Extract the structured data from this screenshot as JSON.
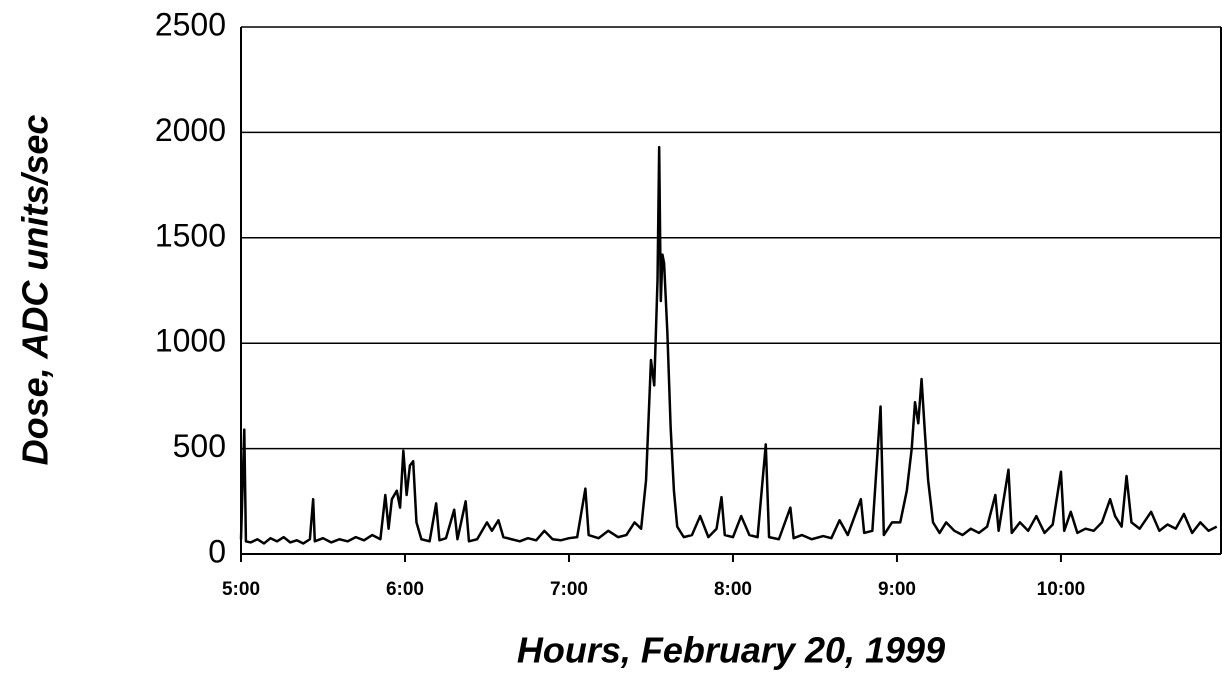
{
  "chart_data": {
    "type": "line",
    "xlabel": "Hours, February 20, 1999",
    "ylabel": "Dose, ADC units/sec",
    "color": "#000000",
    "grid": true,
    "xlim": [
      5,
      10.976
    ],
    "ylim": [
      0,
      2500
    ],
    "yticks": [
      0,
      500,
      1000,
      1500,
      2000,
      2500
    ],
    "xticks": [
      {
        "value": 5,
        "label": "5:00"
      },
      {
        "value": 6,
        "label": "6:00"
      },
      {
        "value": 7,
        "label": "7:00"
      },
      {
        "value": 8,
        "label": "8:00"
      },
      {
        "value": 9,
        "label": "9:00"
      },
      {
        "value": 10,
        "label": "10:00"
      }
    ],
    "x": [
      5.0,
      5.02,
      5.03,
      5.06,
      5.1,
      5.14,
      5.18,
      5.22,
      5.26,
      5.3,
      5.34,
      5.38,
      5.42,
      5.44,
      5.45,
      5.5,
      5.55,
      5.6,
      5.65,
      5.7,
      5.75,
      5.8,
      5.85,
      5.88,
      5.9,
      5.92,
      5.95,
      5.97,
      5.99,
      6.01,
      6.03,
      6.05,
      6.07,
      6.1,
      6.15,
      6.19,
      6.21,
      6.25,
      6.3,
      6.32,
      6.37,
      6.39,
      6.44,
      6.5,
      6.53,
      6.57,
      6.6,
      6.65,
      6.7,
      6.75,
      6.8,
      6.85,
      6.9,
      6.95,
      7.0,
      7.05,
      7.1,
      7.12,
      7.18,
      7.24,
      7.3,
      7.35,
      7.4,
      7.44,
      7.47,
      7.5,
      7.52,
      7.54,
      7.55,
      7.56,
      7.57,
      7.58,
      7.6,
      7.62,
      7.64,
      7.66,
      7.7,
      7.75,
      7.8,
      7.85,
      7.9,
      7.93,
      7.95,
      8.0,
      8.05,
      8.1,
      8.15,
      8.2,
      8.22,
      8.28,
      8.35,
      8.37,
      8.42,
      8.48,
      8.55,
      8.6,
      8.65,
      8.7,
      8.78,
      8.8,
      8.85,
      8.9,
      8.92,
      8.97,
      9.02,
      9.06,
      9.09,
      9.11,
      9.13,
      9.15,
      9.17,
      9.19,
      9.22,
      9.26,
      9.3,
      9.35,
      9.4,
      9.45,
      9.5,
      9.55,
      9.6,
      9.62,
      9.68,
      9.7,
      9.75,
      9.8,
      9.85,
      9.9,
      9.95,
      10.0,
      10.02,
      10.06,
      10.1,
      10.15,
      10.2,
      10.25,
      10.3,
      10.33,
      10.37,
      10.4,
      10.43,
      10.48,
      10.55,
      10.6,
      10.65,
      10.7,
      10.75,
      10.8,
      10.85,
      10.9,
      10.95
    ],
    "values": [
      70,
      590,
      60,
      55,
      70,
      50,
      75,
      60,
      80,
      55,
      65,
      50,
      70,
      260,
      60,
      75,
      55,
      70,
      60,
      80,
      65,
      90,
      70,
      280,
      120,
      260,
      300,
      220,
      490,
      280,
      420,
      440,
      150,
      70,
      60,
      240,
      65,
      75,
      210,
      70,
      250,
      60,
      70,
      150,
      110,
      160,
      80,
      70,
      60,
      75,
      65,
      110,
      70,
      65,
      75,
      80,
      310,
      90,
      75,
      110,
      80,
      90,
      150,
      120,
      350,
      920,
      800,
      1300,
      1930,
      1200,
      1420,
      1380,
      1050,
      600,
      300,
      130,
      80,
      90,
      180,
      80,
      120,
      270,
      90,
      80,
      180,
      90,
      80,
      520,
      80,
      70,
      220,
      75,
      90,
      70,
      85,
      75,
      160,
      90,
      260,
      100,
      110,
      700,
      90,
      150,
      150,
      300,
      500,
      720,
      620,
      830,
      580,
      350,
      150,
      100,
      150,
      110,
      90,
      120,
      100,
      130,
      280,
      110,
      400,
      100,
      150,
      110,
      180,
      100,
      140,
      390,
      110,
      200,
      100,
      120,
      110,
      150,
      260,
      180,
      130,
      370,
      150,
      120,
      200,
      110,
      140,
      120,
      190,
      100,
      150,
      110,
      130
    ]
  }
}
